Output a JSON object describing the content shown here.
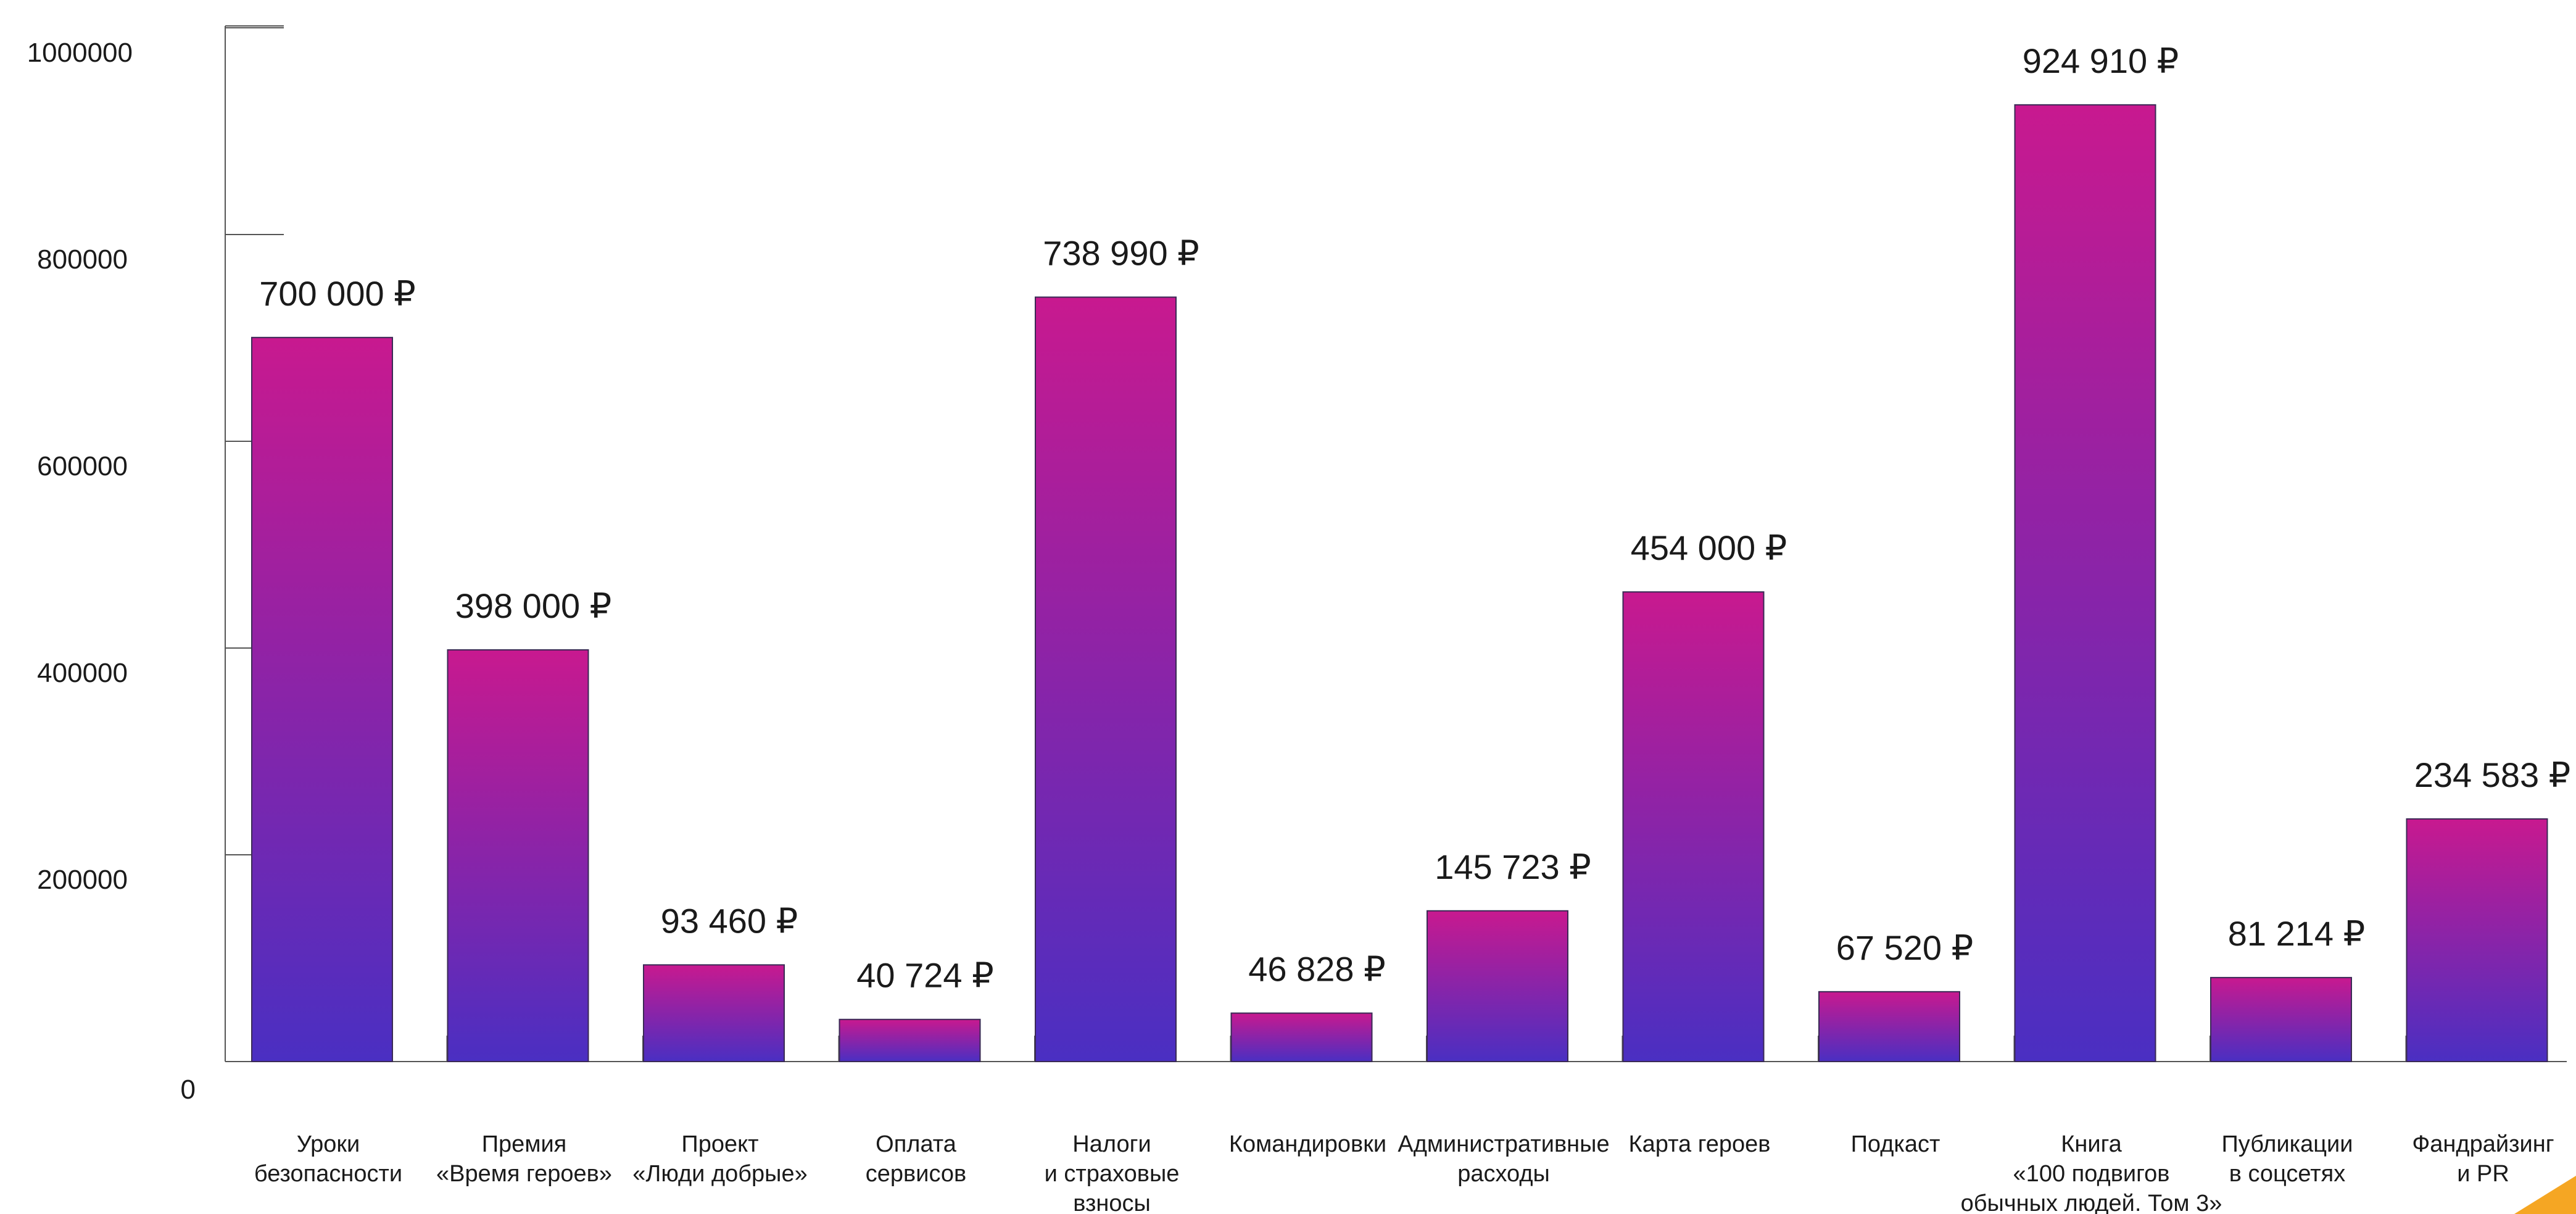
{
  "chart_data": {
    "type": "bar",
    "categories": [
      [
        "Уроки",
        "безопасности"
      ],
      [
        "Премия",
        "«Время героев»"
      ],
      [
        "Проект",
        "«Люди добрые»"
      ],
      [
        "Оплата",
        "сервисов"
      ],
      [
        "Налоги",
        "и страховые",
        "взносы"
      ],
      [
        "Командировки"
      ],
      [
        "Административные",
        "расходы"
      ],
      [
        "Карта героев"
      ],
      [
        "Подкаст"
      ],
      [
        "Книга",
        "«100 подвигов",
        "обычных людей. Том 3»"
      ],
      [
        "Публикации",
        "в соцсетях"
      ],
      [
        "Фандрайзинг",
        "и PR"
      ]
    ],
    "values": [
      700000,
      398000,
      93460,
      40724,
      738990,
      46828,
      145723,
      454000,
      67520,
      924910,
      81214,
      234583
    ],
    "value_labels": [
      "700 000 ₽",
      "398 000 ₽",
      "93 460 ₽",
      "40 724 ₽",
      "738 990 ₽",
      "46 828 ₽",
      "145 723 ₽",
      "454 000 ₽",
      "67 520 ₽",
      "924 910 ₽",
      "81 214 ₽",
      "234 583 ₽"
    ],
    "y_ticks": [
      "0",
      "200000",
      "400000",
      "600000",
      "800000",
      "1000000"
    ],
    "ylim": [
      0,
      1000000
    ],
    "grid": false,
    "colors": {
      "bar_top": "#c8198f",
      "bar_bottom": "#4a2fc2",
      "corner_accent": "#f5a623"
    }
  }
}
